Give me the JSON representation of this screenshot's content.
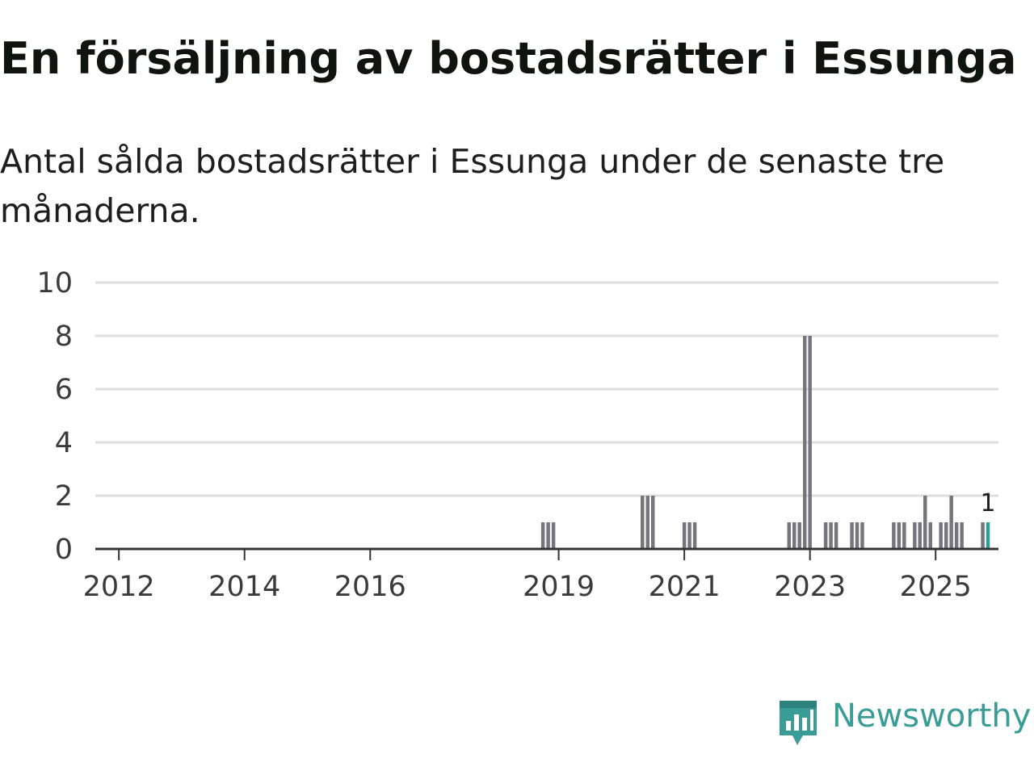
{
  "title": "En försäljning av bostadsrätter i Essunga",
  "subtitle": "Antal sålda bostadsrätter i Essunga under de senaste tre månaderna.",
  "brand": {
    "name": "Newsworthy",
    "color": "#3a9c96",
    "icon": "newsworthy-logo-icon"
  },
  "colors": {
    "bar": "#76757d",
    "highlight": "#2a9d96",
    "grid": "#dedede",
    "axis": "#333333"
  },
  "chart_data": {
    "type": "bar",
    "title": "En försäljning av bostadsrätter i Essunga",
    "xlabel": "",
    "ylabel": "",
    "ylim": [
      0,
      10
    ],
    "yticks": [
      "0",
      "2",
      "4",
      "6",
      "8",
      "10"
    ],
    "xlim": [
      2011.625,
      2026.0
    ],
    "xticks": [
      {
        "label": "2012",
        "value": 2012
      },
      {
        "label": "2014",
        "value": 2014
      },
      {
        "label": "2016",
        "value": 2016
      },
      {
        "label": "2019",
        "value": 2019
      },
      {
        "label": "2021",
        "value": 2021
      },
      {
        "label": "2023",
        "value": 2023
      },
      {
        "label": "2025",
        "value": 2025
      }
    ],
    "series": [
      {
        "name": "Antal sålda bostadsrätter",
        "periods": [
          2018.75,
          2018.833,
          2018.917,
          2020.333,
          2020.417,
          2020.5,
          2021.0,
          2021.083,
          2021.167,
          2022.667,
          2022.75,
          2022.833,
          2022.917,
          2023.0,
          2023.25,
          2023.333,
          2023.417,
          2023.667,
          2023.75,
          2023.833,
          2024.333,
          2024.417,
          2024.5,
          2024.667,
          2024.75,
          2024.833,
          2024.917,
          2025.083,
          2025.167,
          2025.25,
          2025.333,
          2025.417,
          2025.75,
          2025.833
        ],
        "values": [
          1,
          1,
          1,
          2,
          2,
          2,
          1,
          1,
          1,
          1,
          1,
          1,
          8,
          8,
          1,
          1,
          1,
          1,
          1,
          1,
          1,
          1,
          1,
          1,
          1,
          2,
          1,
          1,
          1,
          2,
          1,
          1,
          1,
          1
        ]
      }
    ],
    "highlight": {
      "period": 2025.833,
      "value": 1,
      "label": "1"
    }
  }
}
